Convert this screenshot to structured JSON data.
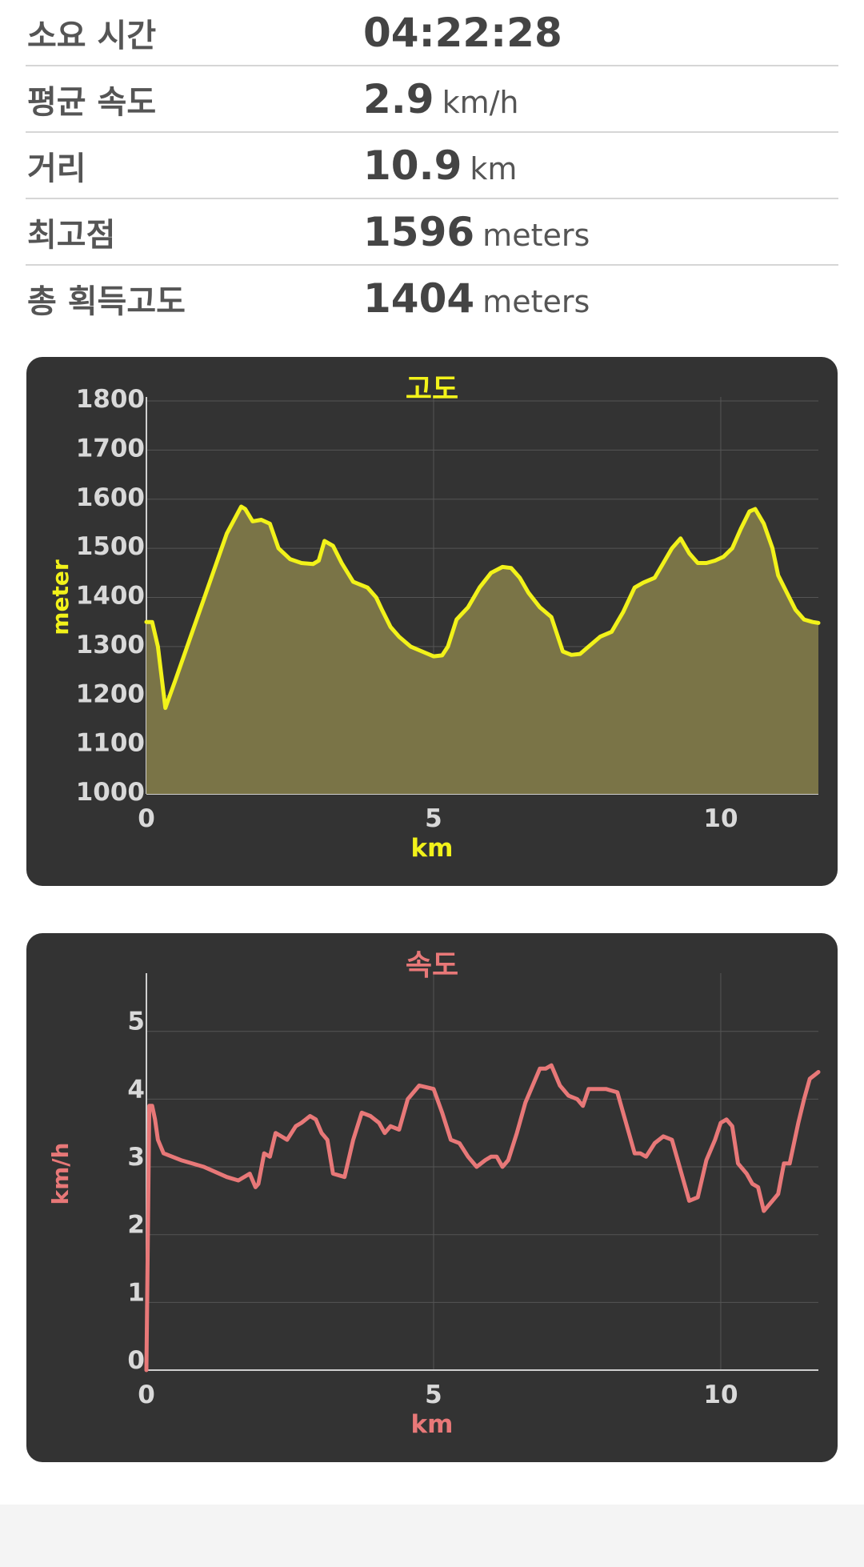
{
  "stats": [
    {
      "label": "소요 시간",
      "value": "04:22:28",
      "unit": ""
    },
    {
      "label": "평균 속도",
      "value": "2.9",
      "unit": "km/h"
    },
    {
      "label": "거리",
      "value": "10.9",
      "unit": "km"
    },
    {
      "label": "최고점",
      "value": "1596",
      "unit": "meters"
    },
    {
      "label": "총 획득고도",
      "value": "1404",
      "unit": "meters"
    }
  ],
  "chart_data": [
    {
      "type": "area",
      "title": "고도",
      "xlabel": "km",
      "ylabel": "meter",
      "xlim": [
        0,
        11.7
      ],
      "ylim": [
        1000,
        1800
      ],
      "xticks": [
        0,
        5,
        10
      ],
      "yticks": [
        1000,
        1100,
        1200,
        1300,
        1400,
        1500,
        1600,
        1700,
        1800
      ],
      "grid": true,
      "line_color": "#f2f21a",
      "fill_color": "#7a7447",
      "title_color": "#f2f21a",
      "x": [
        0,
        0.1,
        0.2,
        0.33,
        0.5,
        0.8,
        1.1,
        1.4,
        1.65,
        1.72,
        1.85,
        2.0,
        2.15,
        2.3,
        2.5,
        2.7,
        2.9,
        3.0,
        3.1,
        3.25,
        3.4,
        3.6,
        3.85,
        4.0,
        4.1,
        4.25,
        4.4,
        4.6,
        4.8,
        5.0,
        5.15,
        5.25,
        5.4,
        5.6,
        5.8,
        6.0,
        6.2,
        6.35,
        6.5,
        6.65,
        6.85,
        7.05,
        7.25,
        7.4,
        7.55,
        7.7,
        7.9,
        8.1,
        8.3,
        8.5,
        8.65,
        8.85,
        9.0,
        9.15,
        9.3,
        9.45,
        9.6,
        9.75,
        9.9,
        10.05,
        10.2,
        10.35,
        10.5,
        10.6,
        10.75,
        10.9,
        11.0,
        11.15,
        11.3,
        11.45,
        11.6,
        11.7
      ],
      "y": [
        1350,
        1350,
        1300,
        1175,
        1230,
        1330,
        1430,
        1530,
        1585,
        1580,
        1555,
        1558,
        1550,
        1500,
        1478,
        1470,
        1468,
        1475,
        1515,
        1505,
        1470,
        1432,
        1420,
        1400,
        1375,
        1340,
        1320,
        1300,
        1290,
        1280,
        1282,
        1300,
        1355,
        1380,
        1420,
        1450,
        1462,
        1460,
        1440,
        1410,
        1380,
        1360,
        1290,
        1283,
        1285,
        1300,
        1320,
        1330,
        1370,
        1420,
        1430,
        1440,
        1470,
        1500,
        1520,
        1490,
        1470,
        1470,
        1475,
        1483,
        1500,
        1540,
        1575,
        1580,
        1550,
        1500,
        1445,
        1410,
        1375,
        1355,
        1350,
        1348
      ]
    },
    {
      "type": "line",
      "title": "속도",
      "xlabel": "km",
      "ylabel": "km/h",
      "xlim": [
        0,
        11.7
      ],
      "ylim": [
        0,
        5.8
      ],
      "xticks": [
        0,
        5,
        10
      ],
      "yticks": [
        0,
        1,
        2,
        3,
        4,
        5
      ],
      "grid": true,
      "line_color": "#e87878",
      "title_color": "#e87878",
      "x": [
        0,
        0.05,
        0.1,
        0.15,
        0.2,
        0.3,
        0.6,
        1.0,
        1.4,
        1.6,
        1.8,
        1.9,
        1.95,
        2.05,
        2.15,
        2.25,
        2.35,
        2.45,
        2.6,
        2.7,
        2.85,
        2.95,
        3.05,
        3.15,
        3.25,
        3.45,
        3.6,
        3.75,
        3.9,
        4.05,
        4.15,
        4.25,
        4.4,
        4.55,
        4.75,
        5.0,
        5.15,
        5.3,
        5.45,
        5.6,
        5.75,
        5.9,
        6.0,
        6.1,
        6.2,
        6.3,
        6.45,
        6.6,
        6.75,
        6.85,
        6.95,
        7.05,
        7.2,
        7.35,
        7.5,
        7.6,
        7.7,
        7.85,
        8.0,
        8.2,
        8.35,
        8.5,
        8.6,
        8.7,
        8.85,
        9.0,
        9.15,
        9.25,
        9.35,
        9.45,
        9.6,
        9.75,
        9.9,
        10.0,
        10.1,
        10.2,
        10.3,
        10.45,
        10.55,
        10.65,
        10.75,
        10.9,
        11.0,
        11.1,
        11.2,
        11.35,
        11.45,
        11.55,
        11.7
      ],
      "y": [
        0,
        3.9,
        3.9,
        3.7,
        3.4,
        3.2,
        3.1,
        3.0,
        2.85,
        2.8,
        2.9,
        2.7,
        2.75,
        3.2,
        3.15,
        3.5,
        3.45,
        3.4,
        3.6,
        3.65,
        3.75,
        3.7,
        3.5,
        3.4,
        2.9,
        2.85,
        3.4,
        3.8,
        3.75,
        3.65,
        3.5,
        3.6,
        3.55,
        4.0,
        4.2,
        4.15,
        3.8,
        3.4,
        3.35,
        3.15,
        3.0,
        3.1,
        3.15,
        3.15,
        3.0,
        3.1,
        3.5,
        3.95,
        4.25,
        4.45,
        4.45,
        4.5,
        4.2,
        4.05,
        4.0,
        3.9,
        4.15,
        4.15,
        4.15,
        4.1,
        3.65,
        3.2,
        3.2,
        3.15,
        3.35,
        3.45,
        3.4,
        3.1,
        2.8,
        2.5,
        2.55,
        3.1,
        3.4,
        3.65,
        3.7,
        3.6,
        3.05,
        2.9,
        2.75,
        2.7,
        2.35,
        2.5,
        2.6,
        3.05,
        3.05,
        3.65,
        4.0,
        4.3,
        4.4
      ]
    }
  ]
}
